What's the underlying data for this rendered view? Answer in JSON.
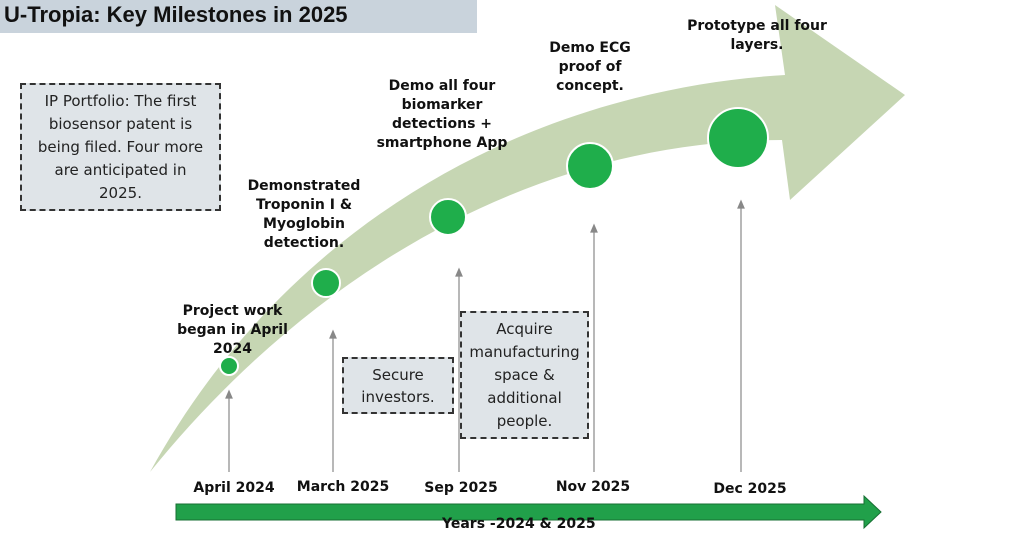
{
  "title": "U-Tropia: Key Milestones in 2025",
  "colors": {
    "arrow_band": "#c6d6b3",
    "milestone_dot": "#1fae4b",
    "timeline_arrow": "#21a04a",
    "box_fill": "#dfe4e8",
    "title_bar": "#c9d3dc"
  },
  "info_boxes": {
    "ip_portfolio": "IP Portfolio: The first biosensor patent is being filed. Four more are anticipated in 2025.",
    "investors": "Secure investors.",
    "manufacturing": "Acquire manufacturing space & additional people."
  },
  "milestones": [
    {
      "text": "Project work began in April 2024",
      "date": "April 2024"
    },
    {
      "text": "Demonstrated Troponin I & Myoglobin detection.",
      "date": "March 2025"
    },
    {
      "text": "Demo all four biomarker detections + smartphone App",
      "date": "Sep 2025"
    },
    {
      "text": "Demo ECG proof of concept.",
      "date": "Nov 2025"
    },
    {
      "text": "Prototype all four layers.",
      "date": "Dec 2025"
    }
  ],
  "axis_label": "Years -2024 & 2025"
}
